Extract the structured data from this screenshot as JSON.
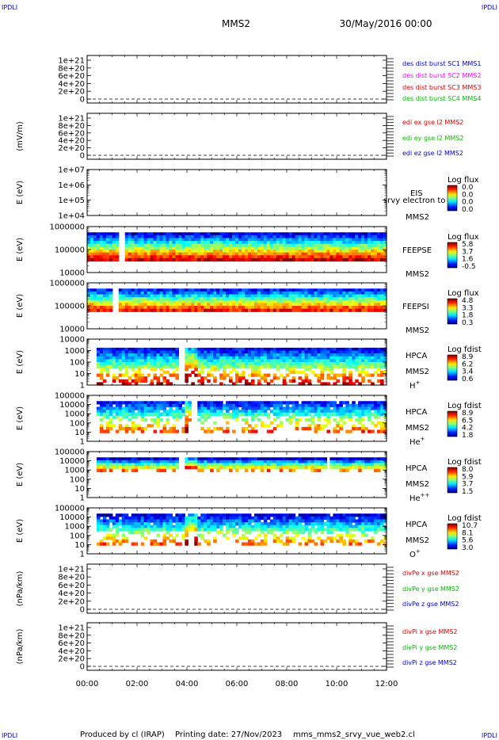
{
  "corner_marks": [
    "IPDLI",
    "IPDLI",
    "IPDLI",
    "IPDLI"
  ],
  "header": {
    "mission": "MMS2",
    "date": "30/May/2016 00:00"
  },
  "footer": {
    "produced": "Produced by cl (IRAP)",
    "printing_date": "Printing date: 27/Nov/2023",
    "script": "mms_mms2_srvy_vue_web2.cl"
  },
  "colors": {
    "mms1": "#0000cc",
    "mms2": "#ff00ff",
    "mms3": "#dd0000",
    "mms4": "#00bb00",
    "x": "#dd0000",
    "y": "#00bb00",
    "z": "#0000cc"
  },
  "chart_data": [
    {
      "type": "line",
      "ylabel": "",
      "yticks": [
        "1e+21",
        "8e+20",
        "6e+20",
        "4e+20",
        "2e+20",
        "0"
      ],
      "series": [
        {
          "name": "des dist burst SC1 MMS1",
          "color": "#0000cc"
        },
        {
          "name": "des dist burst SC2 MMS2",
          "color": "#ff00ff"
        },
        {
          "name": "des dist burst SC3 MMS3",
          "color": "#dd0000"
        },
        {
          "name": "des dist burst SC4 MMS4",
          "color": "#00bb00"
        }
      ]
    },
    {
      "type": "line",
      "ylabel": "(mV/m)",
      "yticks": [
        "1e+21",
        "8e+20",
        "6e+20",
        "4e+20",
        "2e+20",
        "0"
      ],
      "series": [
        {
          "name": "edi ex gse l2 MMS2",
          "color": "#dd0000"
        },
        {
          "name": "edi ey gse l2 MMS2",
          "color": "#00bb00"
        },
        {
          "name": "edi ez gse l2 MMS2",
          "color": "#0000cc"
        }
      ]
    },
    {
      "type": "heatmap",
      "ylabel": "E (eV)",
      "yticks": [
        "1e+07",
        "1e+06",
        "1e+05",
        "1e+04"
      ],
      "right_labels": [
        "EIS",
        "srvy electron to",
        "MMS2"
      ],
      "colorbar_title": "Log flux",
      "colorbar_ticks": [
        "0.0",
        "0.0",
        "0.0",
        "0.0"
      ]
    },
    {
      "type": "heatmap",
      "ylabel": "E (eV)",
      "yticks": [
        "1000000",
        "100000",
        "10000"
      ],
      "right_labels": [
        "FEEPSE",
        "MMS2"
      ],
      "colorbar_title": "Log flux",
      "colorbar_ticks": [
        "5.8",
        "3.7",
        "1.6",
        "-0.5"
      ]
    },
    {
      "type": "heatmap",
      "ylabel": "E (eV)",
      "yticks": [
        "1000000",
        "100000",
        "10000"
      ],
      "right_labels": [
        "FEEPSI",
        "MMS2"
      ],
      "colorbar_title": "Log flux",
      "colorbar_ticks": [
        "4.8",
        "3.3",
        "1.8",
        "0.3"
      ]
    },
    {
      "type": "heatmap",
      "ylabel": "E (eV)",
      "yticks": [
        "10000",
        "1000",
        "100",
        "10",
        "1"
      ],
      "right_labels": [
        "HPCA",
        "MMS2"
      ],
      "species": "H",
      "charge": "+",
      "colorbar_title": "Log fdist",
      "colorbar_ticks": [
        "8.9",
        "6.2",
        "3.4",
        "0.6"
      ]
    },
    {
      "type": "heatmap",
      "ylabel": "E (eV)",
      "yticks": [
        "100000",
        "10000",
        "1000",
        "100",
        "10",
        "1"
      ],
      "right_labels": [
        "HPCA",
        "MMS2"
      ],
      "species": "He",
      "charge": "+",
      "colorbar_title": "Log fdist",
      "colorbar_ticks": [
        "8.9",
        "6.5",
        "4.2",
        "1.8"
      ]
    },
    {
      "type": "heatmap",
      "ylabel": "E (eV)",
      "yticks": [
        "100000",
        "10000",
        "1000",
        "100",
        "10",
        "1"
      ],
      "right_labels": [
        "HPCA",
        "MMS2"
      ],
      "species": "He",
      "charge": "++",
      "colorbar_title": "Log fdist",
      "colorbar_ticks": [
        "8.0",
        "5.9",
        "3.7",
        "1.5"
      ]
    },
    {
      "type": "heatmap",
      "ylabel": "E (eV)",
      "yticks": [
        "100000",
        "10000",
        "1000",
        "100",
        "10",
        "1"
      ],
      "right_labels": [
        "HPCA",
        "MMS2"
      ],
      "species": "O",
      "charge": "+",
      "colorbar_title": "Log fdist",
      "colorbar_ticks": [
        "10.7",
        "8.1",
        "5.6",
        "3.0"
      ]
    },
    {
      "type": "line",
      "ylabel": "(nPa/km)",
      "yticks": [
        "1e+21",
        "8e+20",
        "6e+20",
        "4e+20",
        "2e+20",
        "0"
      ],
      "series": [
        {
          "name": "divPe x gse MMS2",
          "color": "#dd0000"
        },
        {
          "name": "divPe y gse MMS2",
          "color": "#00bb00"
        },
        {
          "name": "divPe z gse MMS2",
          "color": "#0000cc"
        }
      ]
    },
    {
      "type": "line",
      "ylabel": "(nPa/km)",
      "yticks": [
        "1e+21",
        "8e+20",
        "6e+20",
        "4e+20",
        "2e+20",
        "0"
      ],
      "series": [
        {
          "name": "divPi x gse MMS2",
          "color": "#dd0000"
        },
        {
          "name": "divPi y gse MMS2",
          "color": "#00bb00"
        },
        {
          "name": "divPi z gse MMS2",
          "color": "#0000cc"
        }
      ]
    }
  ],
  "x_axis": {
    "ticks": [
      "00:00",
      "02:00",
      "04:00",
      "06:00",
      "08:00",
      "10:00",
      "12:00"
    ]
  }
}
